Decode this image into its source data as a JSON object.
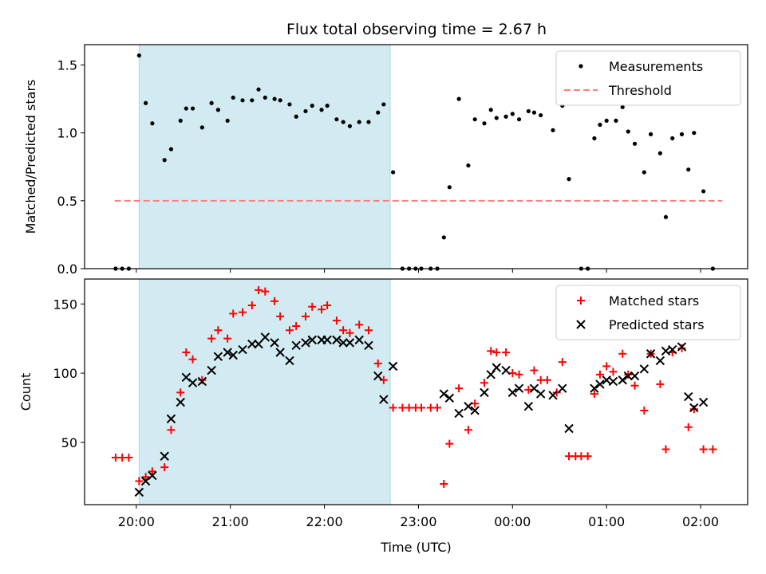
{
  "chart_data": [
    {
      "type": "scatter",
      "title": "Flux total observing time = 2.67 h",
      "xlabel": "",
      "ylabel": "Matched/Predicted stars",
      "x_unit": "hours after 20:00 UTC",
      "xlim": [
        -0.55,
        6.5
      ],
      "ylim": [
        0,
        1.65
      ],
      "yticks": [
        "0.0",
        "0.5",
        "1.0",
        "1.5"
      ],
      "ytick_values": [
        0,
        0.5,
        1.0,
        1.5
      ],
      "shaded_span": [
        0.03,
        2.7
      ],
      "shade_color": "#add8e6",
      "legend_position": "top-right",
      "legend": [
        {
          "label": "Measurements"
        },
        {
          "label": "Threshold"
        }
      ],
      "threshold": {
        "y": 0.5,
        "x_range": [
          -0.23,
          6.23
        ],
        "color": "#ff7f7f"
      },
      "series": [
        {
          "name": "Measurements",
          "color": "#000000",
          "points": [
            [
              -0.22,
              0
            ],
            [
              -0.15,
              0
            ],
            [
              -0.08,
              0
            ],
            [
              0.03,
              1.57
            ],
            [
              0.1,
              1.22
            ],
            [
              0.17,
              1.07
            ],
            [
              0.3,
              0.8
            ],
            [
              0.37,
              0.88
            ],
            [
              0.47,
              1.09
            ],
            [
              0.53,
              1.18
            ],
            [
              0.6,
              1.18
            ],
            [
              0.7,
              1.04
            ],
            [
              0.8,
              1.22
            ],
            [
              0.87,
              1.17
            ],
            [
              0.97,
              1.09
            ],
            [
              1.03,
              1.26
            ],
            [
              1.13,
              1.24
            ],
            [
              1.23,
              1.24
            ],
            [
              1.3,
              1.32
            ],
            [
              1.37,
              1.26
            ],
            [
              1.47,
              1.25
            ],
            [
              1.53,
              1.24
            ],
            [
              1.63,
              1.21
            ],
            [
              1.7,
              1.12
            ],
            [
              1.8,
              1.16
            ],
            [
              1.87,
              1.2
            ],
            [
              1.97,
              1.17
            ],
            [
              2.03,
              1.2
            ],
            [
              2.13,
              1.1
            ],
            [
              2.2,
              1.08
            ],
            [
              2.27,
              1.05
            ],
            [
              2.37,
              1.08
            ],
            [
              2.47,
              1.08
            ],
            [
              2.57,
              1.15
            ],
            [
              2.63,
              1.21
            ],
            [
              2.73,
              0.71
            ],
            [
              2.83,
              0
            ],
            [
              2.9,
              0
            ],
            [
              2.97,
              0
            ],
            [
              3.03,
              0
            ],
            [
              3.13,
              0
            ],
            [
              3.2,
              0
            ],
            [
              3.27,
              0.23
            ],
            [
              3.33,
              0.6
            ],
            [
              3.43,
              1.25
            ],
            [
              3.53,
              0.76
            ],
            [
              3.6,
              1.1
            ],
            [
              3.7,
              1.07
            ],
            [
              3.77,
              1.17
            ],
            [
              3.83,
              1.11
            ],
            [
              3.93,
              1.12
            ],
            [
              4.0,
              1.14
            ],
            [
              4.07,
              1.1
            ],
            [
              4.17,
              1.16
            ],
            [
              4.23,
              1.15
            ],
            [
              4.3,
              1.13
            ],
            [
              4.43,
              1.02
            ],
            [
              4.53,
              1.2
            ],
            [
              4.6,
              0.66
            ],
            [
              4.73,
              0
            ],
            [
              4.8,
              0
            ],
            [
              4.87,
              0.96
            ],
            [
              4.93,
              1.06
            ],
            [
              5.0,
              1.09
            ],
            [
              5.1,
              1.09
            ],
            [
              5.17,
              1.19
            ],
            [
              5.23,
              1.01
            ],
            [
              5.3,
              0.92
            ],
            [
              5.4,
              0.71
            ],
            [
              5.47,
              0.99
            ],
            [
              5.57,
              0.85
            ],
            [
              5.63,
              0.38
            ],
            [
              5.7,
              0.96
            ],
            [
              5.8,
              0.99
            ],
            [
              5.87,
              0.73
            ],
            [
              5.93,
              1.0
            ],
            [
              6.03,
              0.57
            ],
            [
              6.13,
              0
            ]
          ]
        }
      ]
    },
    {
      "type": "scatter",
      "title": "",
      "xlabel": "Time (UTC)",
      "ylabel": "Count",
      "x_unit": "hours after 20:00 UTC",
      "xlim": [
        -0.55,
        6.5
      ],
      "ylim": [
        5,
        168
      ],
      "xticks": [
        "20:00",
        "21:00",
        "22:00",
        "23:00",
        "00:00",
        "01:00",
        "02:00"
      ],
      "xtick_values": [
        0,
        1,
        2,
        3,
        4,
        5,
        6
      ],
      "yticks": [
        "50",
        "100",
        "150"
      ],
      "ytick_values": [
        50,
        100,
        150
      ],
      "shaded_span": [
        0.03,
        2.7
      ],
      "legend_position": "top-right",
      "legend": [
        {
          "label": "Matched stars"
        },
        {
          "label": "Predicted stars"
        }
      ],
      "series": [
        {
          "name": "Matched stars",
          "marker": "plus",
          "color": "#ff0000",
          "points": [
            [
              -0.22,
              39
            ],
            [
              -0.15,
              39
            ],
            [
              -0.08,
              39
            ],
            [
              0.03,
              22
            ],
            [
              0.1,
              25
            ],
            [
              0.17,
              29
            ],
            [
              0.3,
              32
            ],
            [
              0.37,
              59
            ],
            [
              0.47,
              86
            ],
            [
              0.53,
              115
            ],
            [
              0.6,
              110
            ],
            [
              0.7,
              95
            ],
            [
              0.8,
              125
            ],
            [
              0.87,
              131
            ],
            [
              0.97,
              125
            ],
            [
              1.03,
              143
            ],
            [
              1.13,
              144
            ],
            [
              1.23,
              149
            ],
            [
              1.3,
              160
            ],
            [
              1.37,
              159
            ],
            [
              1.47,
              152
            ],
            [
              1.53,
              141
            ],
            [
              1.63,
              131
            ],
            [
              1.7,
              134
            ],
            [
              1.8,
              141
            ],
            [
              1.87,
              148
            ],
            [
              1.97,
              146
            ],
            [
              2.03,
              149
            ],
            [
              2.13,
              138
            ],
            [
              2.2,
              131
            ],
            [
              2.27,
              129
            ],
            [
              2.37,
              135
            ],
            [
              2.47,
              131
            ],
            [
              2.57,
              107
            ],
            [
              2.63,
              95
            ],
            [
              2.73,
              75
            ],
            [
              2.83,
              75
            ],
            [
              2.9,
              75
            ],
            [
              2.97,
              75
            ],
            [
              3.03,
              75
            ],
            [
              3.13,
              75
            ],
            [
              3.2,
              75
            ],
            [
              3.27,
              20
            ],
            [
              3.33,
              49
            ],
            [
              3.43,
              89
            ],
            [
              3.53,
              59
            ],
            [
              3.6,
              78
            ],
            [
              3.7,
              93
            ],
            [
              3.77,
              116
            ],
            [
              3.83,
              115
            ],
            [
              3.93,
              115
            ],
            [
              4.0,
              100
            ],
            [
              4.07,
              99
            ],
            [
              4.17,
              88
            ],
            [
              4.23,
              102
            ],
            [
              4.3,
              95
            ],
            [
              4.37,
              95
            ],
            [
              4.47,
              86
            ],
            [
              4.53,
              108
            ],
            [
              4.6,
              40
            ],
            [
              4.67,
              40
            ],
            [
              4.73,
              40
            ],
            [
              4.8,
              40
            ],
            [
              4.87,
              85
            ],
            [
              4.93,
              99
            ],
            [
              5.0,
              105
            ],
            [
              5.07,
              101
            ],
            [
              5.17,
              114
            ],
            [
              5.23,
              99
            ],
            [
              5.3,
              91
            ],
            [
              5.4,
              73
            ],
            [
              5.47,
              114
            ],
            [
              5.57,
              92
            ],
            [
              5.63,
              45
            ],
            [
              5.7,
              115
            ],
            [
              5.8,
              118
            ],
            [
              5.87,
              61
            ],
            [
              5.93,
              74
            ],
            [
              6.03,
              45
            ],
            [
              6.13,
              45
            ]
          ]
        },
        {
          "name": "Predicted stars",
          "marker": "x",
          "color": "#000000",
          "points": [
            [
              0.03,
              14
            ],
            [
              0.1,
              22
            ],
            [
              0.17,
              26
            ],
            [
              0.3,
              40
            ],
            [
              0.37,
              67
            ],
            [
              0.47,
              79
            ],
            [
              0.53,
              97
            ],
            [
              0.6,
              93
            ],
            [
              0.7,
              94
            ],
            [
              0.8,
              102
            ],
            [
              0.87,
              112
            ],
            [
              0.97,
              115
            ],
            [
              1.03,
              113
            ],
            [
              1.13,
              117
            ],
            [
              1.23,
              121
            ],
            [
              1.3,
              121
            ],
            [
              1.37,
              126
            ],
            [
              1.47,
              122
            ],
            [
              1.53,
              115
            ],
            [
              1.63,
              109
            ],
            [
              1.7,
              120
            ],
            [
              1.8,
              122
            ],
            [
              1.87,
              124
            ],
            [
              1.97,
              124
            ],
            [
              2.03,
              124
            ],
            [
              2.13,
              124
            ],
            [
              2.2,
              122
            ],
            [
              2.27,
              122
            ],
            [
              2.37,
              124
            ],
            [
              2.47,
              120
            ],
            [
              2.57,
              98
            ],
            [
              2.63,
              81
            ],
            [
              2.73,
              105
            ],
            [
              3.27,
              85
            ],
            [
              3.33,
              82
            ],
            [
              3.43,
              71
            ],
            [
              3.53,
              76
            ],
            [
              3.6,
              73
            ],
            [
              3.7,
              86
            ],
            [
              3.77,
              99
            ],
            [
              3.83,
              104
            ],
            [
              3.93,
              102
            ],
            [
              4.0,
              86
            ],
            [
              4.07,
              89
            ],
            [
              4.17,
              76
            ],
            [
              4.23,
              89
            ],
            [
              4.3,
              85
            ],
            [
              4.43,
              84
            ],
            [
              4.53,
              89
            ],
            [
              4.6,
              60
            ],
            [
              4.87,
              89
            ],
            [
              4.93,
              92
            ],
            [
              5.0,
              95
            ],
            [
              5.07,
              94
            ],
            [
              5.17,
              95
            ],
            [
              5.23,
              98
            ],
            [
              5.3,
              98
            ],
            [
              5.4,
              103
            ],
            [
              5.47,
              114
            ],
            [
              5.57,
              109
            ],
            [
              5.63,
              116
            ],
            [
              5.7,
              117
            ],
            [
              5.8,
              119
            ],
            [
              5.87,
              83
            ],
            [
              5.93,
              75
            ],
            [
              6.03,
              79
            ]
          ]
        }
      ]
    }
  ]
}
